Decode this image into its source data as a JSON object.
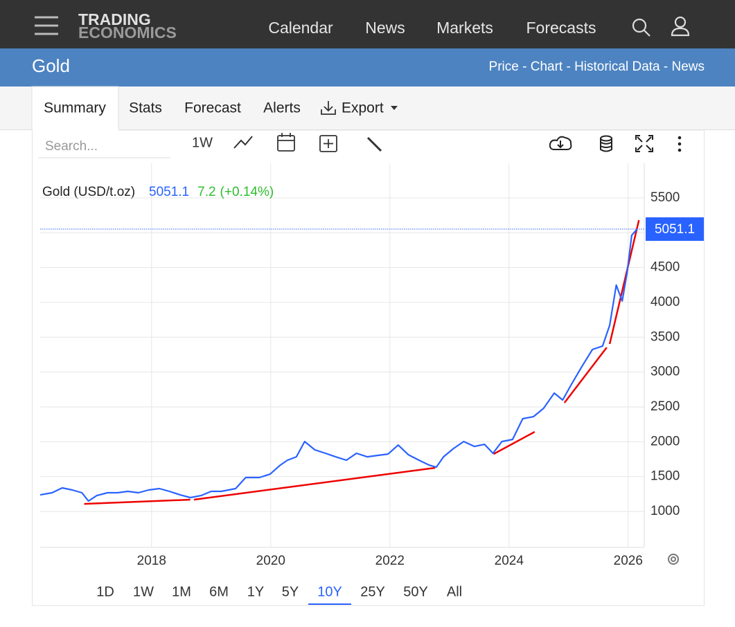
{
  "header": {
    "logo": [
      "TRADING",
      "ECONOMICS"
    ],
    "nav": [
      "Calendar",
      "News",
      "Markets",
      "Forecasts"
    ]
  },
  "subheader": {
    "title": "Gold",
    "links": "Price - Chart - Historical Data - News"
  },
  "tabs": [
    "Summary",
    "Stats",
    "Forecast",
    "Alerts",
    "Export"
  ],
  "toolbar": {
    "search_placeholder": "Search...",
    "interval": "1W"
  },
  "range_buttons": [
    "1D",
    "1W",
    "1M",
    "6M",
    "1Y",
    "5Y",
    "10Y",
    "25Y",
    "50Y",
    "All"
  ],
  "selected_range_index": 6,
  "chart_data": {
    "type": "line",
    "legend_name": "Gold (USD/t.oz)",
    "change": "7.2",
    "change_pct": "(+0.14%)",
    "xlim": [
      2016.13,
      2026.27
    ],
    "xticks": [
      2018,
      2020,
      2022,
      2024,
      2026
    ],
    "ylim": [
      484,
      5995
    ],
    "yticks": [
      1000,
      1500,
      2000,
      2500,
      3000,
      3500,
      4000,
      4500,
      5000,
      5500
    ],
    "visible_ytick_labels": [
      1000,
      1500,
      2000,
      2500,
      3000,
      3500,
      4000,
      4500,
      5500
    ],
    "grid": true,
    "series": [
      {
        "name": "Gold",
        "color": "#2962ff",
        "x": [
          2016.13,
          2016.33,
          2016.5,
          2016.67,
          2016.83,
          2016.94,
          2017.08,
          2017.26,
          2017.43,
          2017.6,
          2017.78,
          2017.95,
          2018.13,
          2018.3,
          2018.48,
          2018.65,
          2018.83,
          2019,
          2019.17,
          2019.41,
          2019.58,
          2019.81,
          2019.99,
          2020.16,
          2020.28,
          2020.43,
          2020.57,
          2020.74,
          2020.92,
          2021.09,
          2021.27,
          2021.44,
          2021.62,
          2021.79,
          2021.97,
          2022.14,
          2022.31,
          2022.49,
          2022.66,
          2022.78,
          2022.9,
          2023.07,
          2023.24,
          2023.42,
          2023.59,
          2023.73,
          2023.88,
          2024.06,
          2024.23,
          2024.41,
          2024.58,
          2024.76,
          2024.9,
          2025.05,
          2025.22,
          2025.4,
          2025.57,
          2025.69,
          2025.8,
          2025.9,
          2025.98,
          2026.06,
          2026.15
        ],
        "values": [
          1238,
          1268,
          1338,
          1308,
          1268,
          1149,
          1228,
          1268,
          1268,
          1288,
          1268,
          1308,
          1328,
          1288,
          1238,
          1199,
          1228,
          1288,
          1288,
          1328,
          1487,
          1487,
          1536,
          1665,
          1735,
          1784,
          2003,
          1884,
          1834,
          1784,
          1735,
          1834,
          1784,
          1804,
          1824,
          1953,
          1814,
          1735,
          1665,
          1636,
          1784,
          1904,
          2003,
          1933,
          1963,
          1834,
          2003,
          2033,
          2331,
          2360,
          2480,
          2698,
          2599,
          2827,
          3075,
          3324,
          3373,
          3671,
          4247,
          4019,
          4416,
          4962,
          5051.1
        ]
      }
    ],
    "trend_lines": [
      {
        "color": "#ee0000",
        "x": [
          2016.87,
          2018.65
        ],
        "values": [
          1109,
          1169
        ]
      },
      {
        "color": "#ee0000",
        "x": [
          2018.71,
          2022.76
        ],
        "values": [
          1169,
          1626
        ]
      },
      {
        "color": "#ee0000",
        "x": [
          2023.74,
          2024.43
        ],
        "values": [
          1824,
          2142
        ]
      },
      {
        "color": "#ee0000",
        "x": [
          2024.93,
          2025.64
        ],
        "values": [
          2559,
          3353
        ]
      },
      {
        "color": "#ee0000",
        "x": [
          2025.69,
          2026.18
        ],
        "values": [
          3403,
          5180
        ]
      }
    ]
  }
}
